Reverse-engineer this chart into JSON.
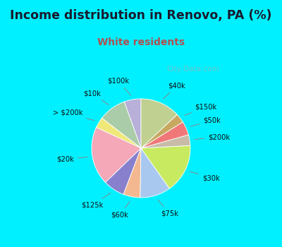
{
  "title": "Income distribution in Renovo, PA (%)",
  "subtitle": "White residents",
  "title_color": "#1a1a2e",
  "subtitle_color": "#b05050",
  "bg_cyan": "#00f0ff",
  "bg_chart": "#e8f5ee",
  "labels": [
    "$100k",
    "$10k",
    "> $200k",
    "$20k",
    "$125k",
    "$60k",
    "$75k",
    "$30k",
    "$200k",
    "$50k",
    "$150k",
    "$40k"
  ],
  "sizes": [
    5.5,
    9.0,
    3.5,
    19.0,
    7.0,
    5.5,
    10.0,
    16.0,
    3.5,
    4.5,
    3.0,
    13.0
  ],
  "colors": [
    "#b8b0d8",
    "#aacca8",
    "#f0e878",
    "#f4a8b8",
    "#8880cc",
    "#f4b890",
    "#a8c8f0",
    "#c8ea60",
    "#c8bca8",
    "#f07878",
    "#c8a860",
    "#c0d090"
  ],
  "watermark": "City-Data.com",
  "start_angle": 90
}
